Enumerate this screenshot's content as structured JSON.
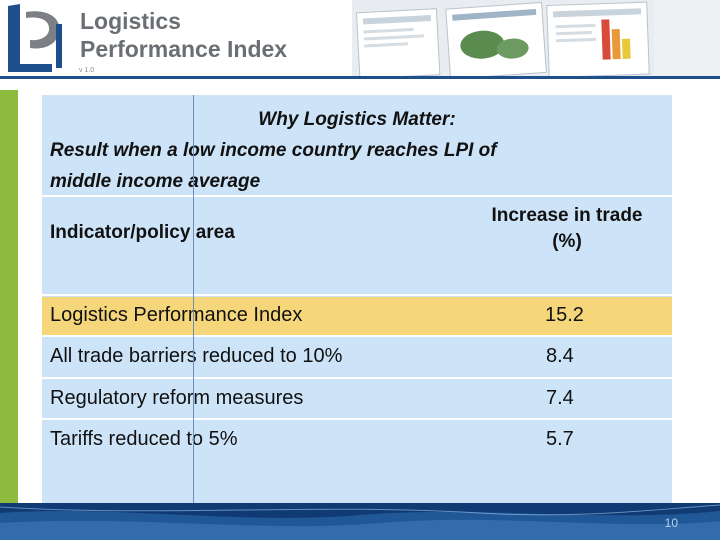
{
  "header": {
    "logo_line1": "Logistics",
    "logo_line2": "Performance Index",
    "logo_version": "v 1.0"
  },
  "slide": {
    "title_line1": "Why Logistics Matter:",
    "title_line2": "Result when a low income country reaches LPI of",
    "title_line3": "middle income average"
  },
  "table": {
    "header_col1": "Indicator/policy area",
    "header_col2_line1": "Increase in trade",
    "header_col2_line2": "(%)",
    "rows": [
      {
        "label": "Logistics Performance Index",
        "value": "15.2"
      },
      {
        "label": "All trade barriers reduced to 10%",
        "value": "8.4"
      },
      {
        "label": "Regulatory reform measures",
        "value": "7.4"
      },
      {
        "label": "Tariffs reduced to 5%",
        "value": "5.7"
      }
    ]
  },
  "footer": {
    "page_number": "10"
  },
  "colors": {
    "panel": "#cde4f8",
    "highlight": "#f6d67a",
    "accent": "#8dbb3d",
    "footer": "#0f3a73"
  }
}
